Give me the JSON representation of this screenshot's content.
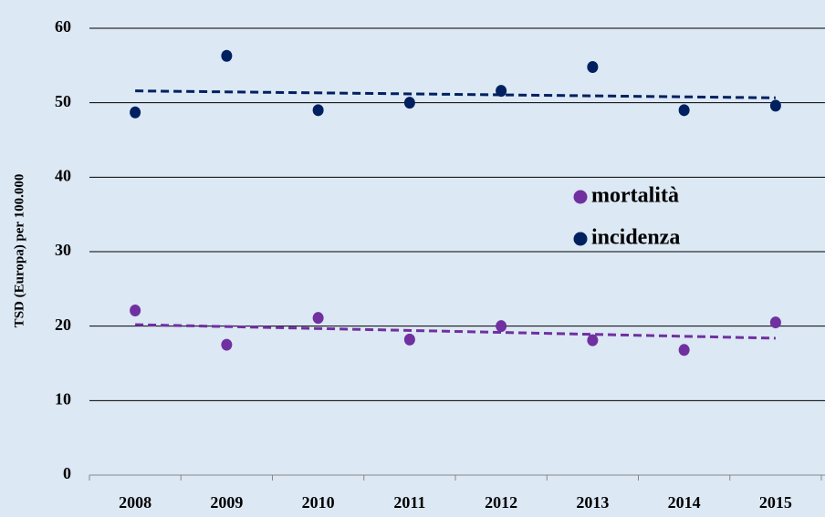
{
  "chart_data": {
    "type": "scatter",
    "y_label": "TSD (Europa) per 100.000",
    "categories": [
      "2008",
      "2009",
      "2010",
      "2011",
      "2012",
      "2013",
      "2014",
      "2015"
    ],
    "series": [
      {
        "name": "mortalità",
        "color": "#7030a0",
        "values": [
          22.1,
          17.5,
          21.1,
          18.2,
          20.0,
          18.1,
          16.8,
          20.5
        ]
      },
      {
        "name": "incidenza",
        "color": "#002060",
        "values": [
          48.7,
          56.3,
          49.0,
          50.0,
          51.6,
          54.8,
          49.0,
          49.6
        ]
      }
    ],
    "ylim": [
      0,
      60
    ],
    "yticks": [
      0,
      10,
      20,
      30,
      40,
      50,
      60
    ],
    "grid": true,
    "trendline": true
  }
}
